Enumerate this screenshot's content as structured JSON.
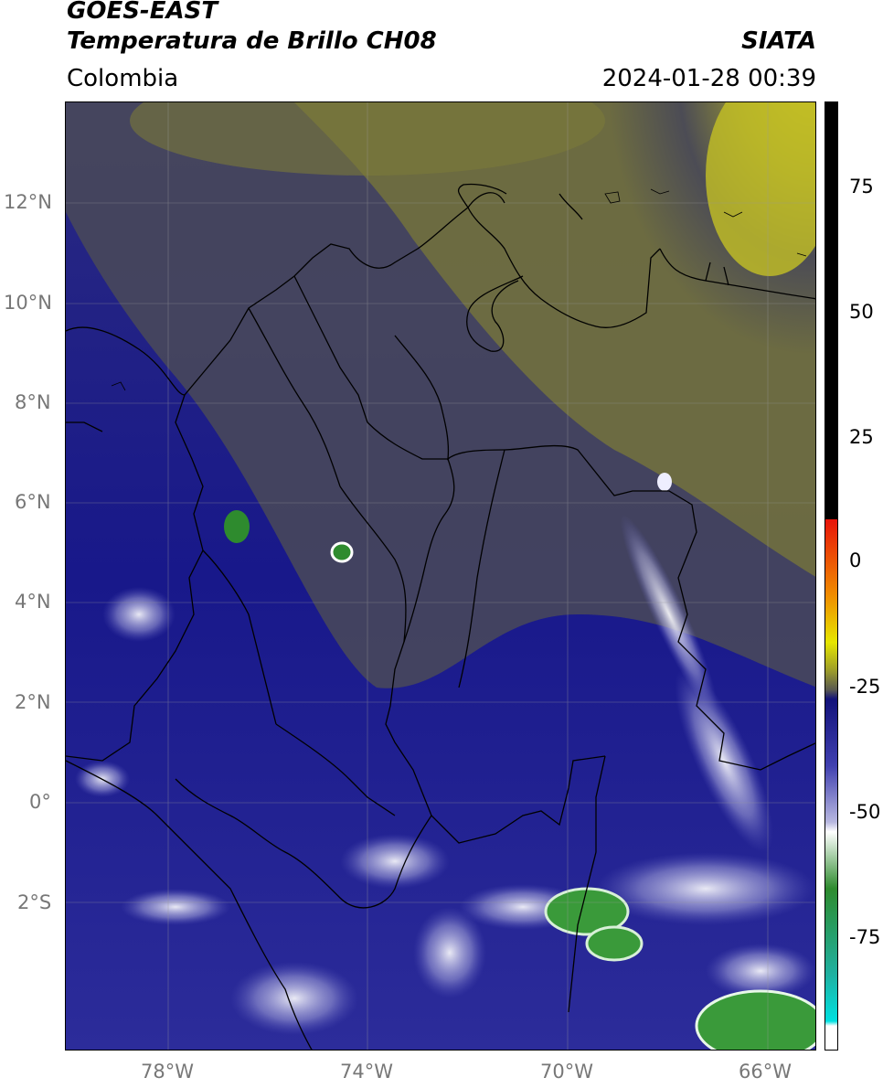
{
  "header": {
    "satellite": "GOES-EAST",
    "product": "Temperatura de Brillo CH08",
    "brand": "SIATA",
    "region": "Colombia",
    "datetime": "2024-01-28 00:39"
  },
  "map": {
    "lon_ticks": [
      "78°W",
      "74°W",
      "70°W",
      "66°W"
    ],
    "lat_ticks": [
      "12°N",
      "10°N",
      "8°N",
      "6°N",
      "4°N",
      "2°N",
      "0°",
      "2°S"
    ],
    "grid": true
  },
  "colorbar": {
    "ticks": [
      "75",
      "50",
      "25",
      "0",
      "-25",
      "-50",
      "-75"
    ],
    "colors": {
      "top": "#000000",
      "red": "#e8140a",
      "orange": "#f08c00",
      "yellow": "#e6e600",
      "olive": "#9c9c2a",
      "gray": "#5a5a50",
      "navy": "#12127a",
      "blue": "#4040b0",
      "lavender": "#b8b8e0",
      "white": "#ffffff",
      "green": "#2e8b2e",
      "teal": "#20b0a0",
      "cyan": "#00e0e0"
    }
  }
}
